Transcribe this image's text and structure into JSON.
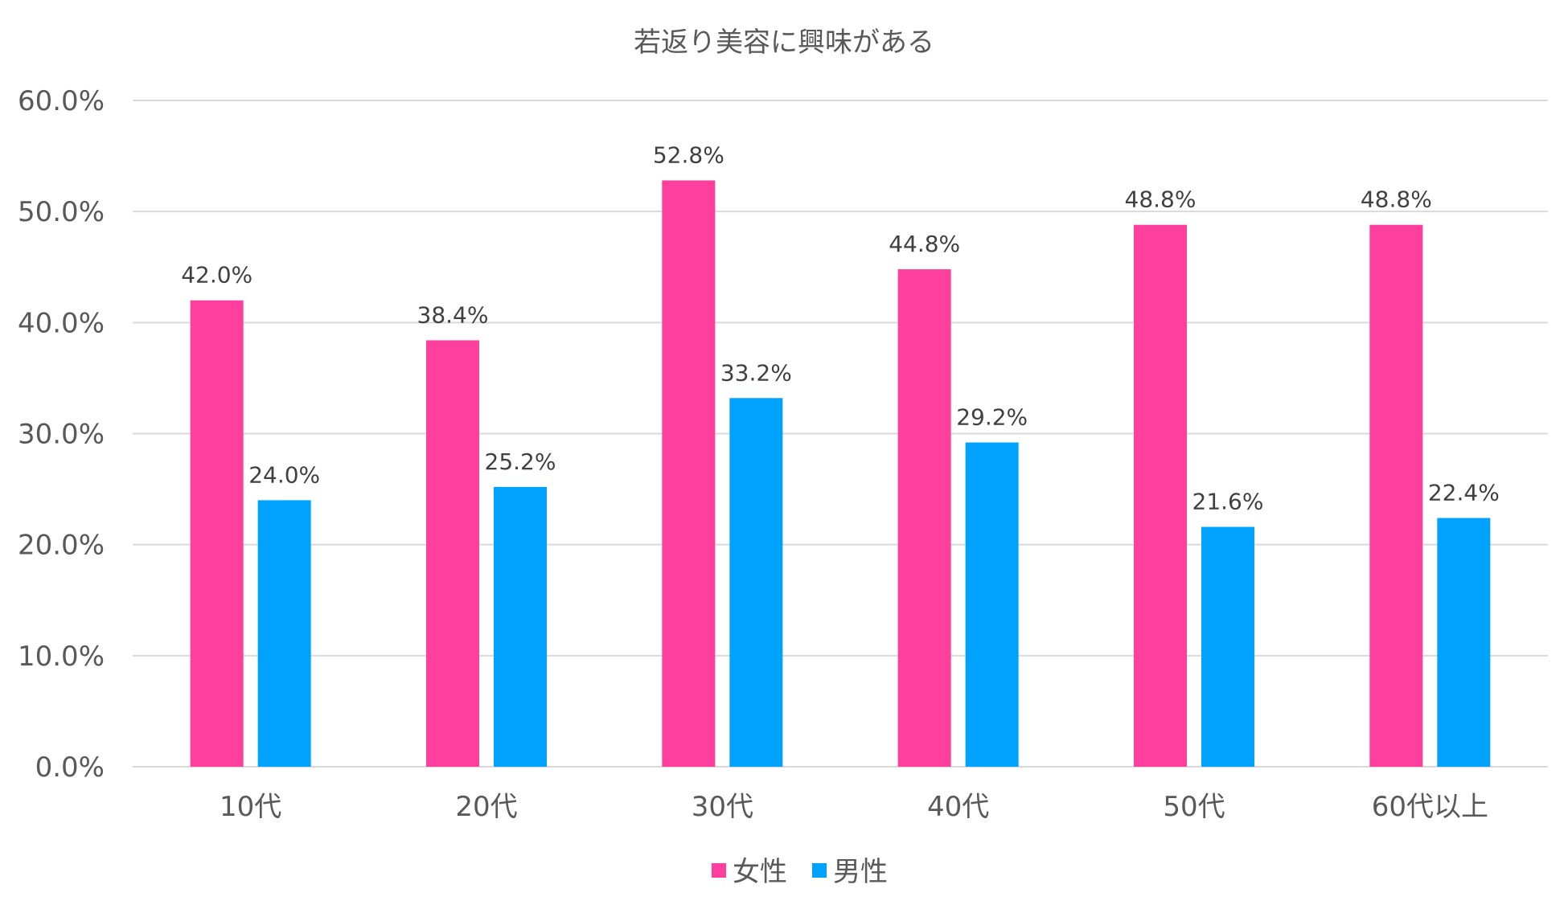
{
  "chart_data": {
    "type": "bar",
    "title": "若返り美容に興味がある",
    "categories": [
      "10代",
      "20代",
      "30代",
      "40代",
      "50代",
      "60代以上"
    ],
    "series": [
      {
        "name": "女性",
        "color": "#FF3F9E",
        "values": [
          42.0,
          38.4,
          52.8,
          44.8,
          48.8,
          48.8
        ],
        "labels": [
          "42.0%",
          "38.4%",
          "52.8%",
          "44.8%",
          "48.8%",
          "48.8%"
        ]
      },
      {
        "name": "男性",
        "color": "#00A2FF",
        "values": [
          24.0,
          25.2,
          33.2,
          29.2,
          21.6,
          22.4
        ],
        "labels": [
          "24.0%",
          "25.2%",
          "33.2%",
          "29.2%",
          "21.6%",
          "22.4%"
        ]
      }
    ],
    "ylim": [
      0,
      60
    ],
    "yticks": [
      0,
      10,
      20,
      30,
      40,
      50,
      60
    ],
    "ytick_labels": [
      "0.0%",
      "10.0%",
      "20.0%",
      "30.0%",
      "40.0%",
      "50.0%",
      "60.0%"
    ],
    "grid": true,
    "legend": "bottom-center"
  }
}
